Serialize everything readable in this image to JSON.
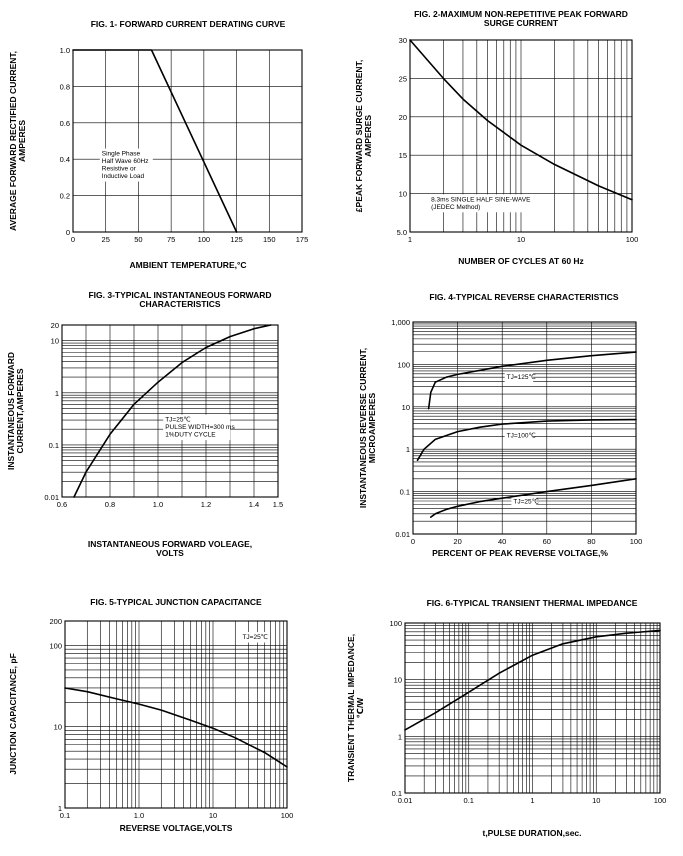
{
  "chart_data": [
    {
      "id": "fig1",
      "type": "line",
      "xscale": "linear",
      "yscale": "linear",
      "title": [
        "FIG. 1- FORWARD CURRENT DERATING CURVE"
      ],
      "xlabel": [
        "AMBIENT TEMPERATURE,°C"
      ],
      "ylabel": [
        "AVERAGE FORWARD RECTIFIED CURRENT,",
        "AMPERES"
      ],
      "xlim": [
        0,
        175
      ],
      "ylim": [
        0,
        1.0
      ],
      "xticks": [
        0,
        25,
        50,
        75,
        100,
        125,
        150,
        175
      ],
      "xtick_labels": [
        "0",
        "25",
        "50",
        "75",
        "100",
        "125",
        "150",
        "175"
      ],
      "yticks": [
        0,
        0.2,
        0.4,
        0.6,
        0.8,
        1.0
      ],
      "ytick_labels": [
        "0",
        "0.2",
        "0.4",
        "0.6",
        "0.8",
        "1.0"
      ],
      "xgrid": [
        0,
        25,
        50,
        75,
        100,
        125,
        150,
        175
      ],
      "ygrid": [
        0,
        0.2,
        0.4,
        0.6,
        0.8,
        1.0
      ],
      "series": [
        {
          "name": "derating",
          "x": [
            0,
            60,
            125
          ],
          "y": [
            1.0,
            1.0,
            0.0
          ]
        }
      ],
      "annotations": [
        {
          "x": 22,
          "y": 0.42,
          "lines": [
            "Single Phase",
            "Half Wave 60Hz",
            "Resistive or",
            "Inductive Load"
          ]
        }
      ]
    },
    {
      "id": "fig2",
      "type": "line",
      "xscale": "log",
      "yscale": "linear",
      "title": [
        "FIG. 2-MAXIMUM NON-REPETITIVE PEAK FORWARD",
        "SURGE CURRENT"
      ],
      "xlabel": [
        "NUMBER OF CYCLES AT 60 Hz"
      ],
      "ylabel": [
        "£PEAK  FORWARD SURGE CURRENT,",
        "AMPERES"
      ],
      "xlim": [
        1,
        100
      ],
      "ylim": [
        5.0,
        30
      ],
      "xticks": [
        1,
        10,
        100
      ],
      "xtick_labels": [
        "1",
        "10",
        "100"
      ],
      "yticks": [
        5,
        10,
        15,
        20,
        25,
        30
      ],
      "ytick_labels": [
        "5.0",
        "10",
        "15",
        "20",
        "25",
        "30"
      ],
      "xgrid": [
        1,
        2,
        3,
        4,
        5,
        6,
        7,
        8,
        9,
        10,
        20,
        30,
        40,
        50,
        60,
        70,
        80,
        90,
        100
      ],
      "ygrid": [
        5,
        10,
        15,
        20,
        25,
        30
      ],
      "series": [
        {
          "name": "surge",
          "x": [
            1,
            2,
            3,
            5,
            10,
            20,
            50,
            100
          ],
          "y": [
            30,
            25,
            22.3,
            19.5,
            16.3,
            13.8,
            11,
            9.2
          ]
        }
      ],
      "annotations": [
        {
          "x": 1.55,
          "y": 9.0,
          "lines": [
            "8.3ms SINGLE HALF SINE-WAVE",
            "(JEDEC Method)"
          ]
        }
      ]
    },
    {
      "id": "fig3",
      "type": "line",
      "xscale": "linear",
      "yscale": "log",
      "title": [
        "FIG. 3-TYPICAL INSTANTANEOUS FORWARD",
        "CHARACTERISTICS"
      ],
      "xlabel": [
        "INSTANTANEOUS FORWARD VOLEAGE,",
        "VOLTS"
      ],
      "ylabel": [
        "INSTANTANEOUS FORWARD",
        "CURRENT,AMPERES"
      ],
      "xlim": [
        0.6,
        1.5
      ],
      "ylim": [
        0.01,
        20
      ],
      "xticks": [
        0.6,
        0.8,
        1.0,
        1.2,
        1.4,
        1.5
      ],
      "xtick_labels": [
        "0.6",
        "0.8",
        "1.0",
        "1.2",
        "1.4",
        "1.5"
      ],
      "yticks": [
        0.01,
        0.1,
        1,
        10,
        20
      ],
      "ytick_labels": [
        "0.01",
        "0.1",
        "1",
        "10",
        "20"
      ],
      "xgrid": [
        0.6,
        0.7,
        0.8,
        0.9,
        1.0,
        1.1,
        1.2,
        1.3,
        1.4,
        1.5
      ],
      "ygrid": [
        0.01,
        0.02,
        0.03,
        0.04,
        0.05,
        0.06,
        0.07,
        0.08,
        0.09,
        0.1,
        0.2,
        0.3,
        0.4,
        0.5,
        0.6,
        0.7,
        0.8,
        0.9,
        1,
        2,
        3,
        4,
        5,
        6,
        7,
        8,
        9,
        10,
        20
      ],
      "series": [
        {
          "name": "forward",
          "x": [
            0.65,
            0.7,
            0.8,
            0.9,
            1.0,
            1.1,
            1.2,
            1.3,
            1.4,
            1.47
          ],
          "y": [
            0.01,
            0.03,
            0.16,
            0.6,
            1.6,
            3.8,
            7.4,
            12,
            17,
            20
          ]
        }
      ],
      "annotations": [
        {
          "x": 1.03,
          "y": 0.28,
          "lines": [
            "TJ=25℃",
            "PULSE WIDTH=300 ms",
            "1%DUTY CYCLE"
          ]
        }
      ]
    },
    {
      "id": "fig4",
      "type": "line",
      "xscale": "linear",
      "yscale": "log",
      "title": [
        "FIG. 4-TYPICAL REVERSE CHARACTERISTICS"
      ],
      "xlabel": [
        "PERCENT OF PEAK REVERSE VOLTAGE,%"
      ],
      "ylabel": [
        "INSTANTANEOUS REVERSE CURRENT,",
        "MICROAMPERES"
      ],
      "xlim": [
        0,
        100
      ],
      "ylim": [
        0.01,
        1000
      ],
      "xticks": [
        0,
        20,
        40,
        60,
        80,
        100
      ],
      "xtick_labels": [
        "0",
        "20",
        "40",
        "60",
        "80",
        "100"
      ],
      "yticks": [
        0.01,
        0.1,
        1,
        10,
        100,
        1000
      ],
      "ytick_labels": [
        "0.01",
        "0.1",
        "1",
        "10",
        "100",
        "1,000"
      ],
      "xgrid": [
        0,
        20,
        40,
        60,
        80,
        100
      ],
      "ygrid": [
        0.01,
        0.02,
        0.03,
        0.04,
        0.05,
        0.06,
        0.07,
        0.08,
        0.09,
        0.1,
        0.2,
        0.3,
        0.4,
        0.5,
        0.6,
        0.7,
        0.8,
        0.9,
        1,
        2,
        3,
        4,
        5,
        6,
        7,
        8,
        9,
        10,
        20,
        30,
        40,
        50,
        60,
        70,
        80,
        90,
        100,
        200,
        300,
        400,
        500,
        600,
        700,
        800,
        900,
        1000
      ],
      "series": [
        {
          "name": "TJ=125℃",
          "x": [
            7,
            8,
            10,
            15,
            20,
            40,
            60,
            80,
            100
          ],
          "y": [
            9,
            22,
            38,
            50,
            58,
            90,
            125,
            160,
            195
          ]
        },
        {
          "name": "TJ=100℃",
          "x": [
            2,
            5,
            10,
            20,
            30,
            40,
            60,
            80,
            100
          ],
          "y": [
            0.55,
            1.0,
            1.7,
            2.6,
            3.3,
            3.9,
            4.6,
            4.9,
            5.0
          ]
        },
        {
          "name": "TJ=25℃",
          "x": [
            8,
            10,
            15,
            20,
            30,
            40,
            60,
            80,
            100
          ],
          "y": [
            0.025,
            0.03,
            0.038,
            0.045,
            0.058,
            0.07,
            0.1,
            0.14,
            0.2
          ]
        }
      ],
      "annotations": [
        {
          "x": 42,
          "y": 45,
          "lines": [
            "TJ=125℃"
          ]
        },
        {
          "x": 42,
          "y": 1.9,
          "lines": [
            "TJ=100℃"
          ]
        },
        {
          "x": 45,
          "y": 0.052,
          "lines": [
            "TJ=25℃"
          ]
        }
      ]
    },
    {
      "id": "fig5",
      "type": "line",
      "xscale": "log",
      "yscale": "log",
      "title": [
        "FIG. 5-TYPICAL JUNCTION CAPACITANCE"
      ],
      "xlabel": [
        "REVERSE VOLTAGE,VOLTS"
      ],
      "ylabel": [
        "JUNCTION CAPACITANCE, pF"
      ],
      "xlim": [
        0.1,
        100
      ],
      "ylim": [
        1,
        200
      ],
      "xticks": [
        0.1,
        1.0,
        10,
        100
      ],
      "xtick_labels": [
        "0.1",
        "1.0",
        "10",
        "100"
      ],
      "yticks": [
        1,
        10,
        100,
        200
      ],
      "ytick_labels": [
        "1",
        "10",
        "100",
        "200"
      ],
      "xgrid": [
        0.1,
        0.2,
        0.3,
        0.4,
        0.5,
        0.6,
        0.7,
        0.8,
        0.9,
        1,
        2,
        3,
        4,
        5,
        6,
        7,
        8,
        9,
        10,
        20,
        30,
        40,
        50,
        60,
        70,
        80,
        90,
        100
      ],
      "ygrid": [
        1,
        2,
        3,
        4,
        5,
        6,
        7,
        8,
        9,
        10,
        20,
        30,
        40,
        50,
        60,
        70,
        80,
        90,
        100,
        200
      ],
      "series": [
        {
          "name": "capacitance",
          "x": [
            0.1,
            0.2,
            0.5,
            1,
            2,
            5,
            10,
            20,
            50,
            100
          ],
          "y": [
            30,
            27,
            22,
            19,
            16,
            12,
            9.6,
            7.3,
            4.8,
            3.2
          ]
        }
      ],
      "annotations": [
        {
          "x": 25,
          "y": 120,
          "lines": [
            "TJ=25℃"
          ]
        }
      ]
    },
    {
      "id": "fig6",
      "type": "line",
      "xscale": "log",
      "yscale": "log",
      "title": [
        "FIG. 6-TYPICAL TRANSIENT THERMAL IMPEDANCE"
      ],
      "xlabel": [
        "t,PULSE DURATION,sec."
      ],
      "ylabel": [
        "TRANSIENT THERMAL IMPEDANCE,",
        "℃/W"
      ],
      "xlim": [
        0.01,
        100
      ],
      "ylim": [
        0.1,
        100
      ],
      "xticks": [
        0.01,
        0.1,
        1,
        10,
        100
      ],
      "xtick_labels": [
        "0.01",
        "0.1",
        "1",
        "10",
        "100"
      ],
      "yticks": [
        0.1,
        1,
        10,
        100
      ],
      "ytick_labels": [
        "0.1",
        "1",
        "10",
        "100"
      ],
      "xgrid": [
        0.01,
        0.02,
        0.03,
        0.04,
        0.05,
        0.06,
        0.07,
        0.08,
        0.09,
        0.1,
        0.2,
        0.3,
        0.4,
        0.5,
        0.6,
        0.7,
        0.8,
        0.9,
        1,
        2,
        3,
        4,
        5,
        6,
        7,
        8,
        9,
        10,
        20,
        30,
        40,
        50,
        60,
        70,
        80,
        90,
        100
      ],
      "ygrid": [
        0.1,
        0.2,
        0.3,
        0.4,
        0.5,
        0.6,
        0.7,
        0.8,
        0.9,
        1,
        2,
        3,
        4,
        5,
        6,
        7,
        8,
        9,
        10,
        20,
        30,
        40,
        50,
        60,
        70,
        80,
        90,
        100
      ],
      "series": [
        {
          "name": "impedance",
          "x": [
            0.01,
            0.03,
            0.1,
            0.3,
            1,
            3,
            10,
            30,
            100
          ],
          "y": [
            1.3,
            2.6,
            6,
            13,
            27,
            43,
            57,
            66,
            74
          ]
        }
      ]
    }
  ]
}
